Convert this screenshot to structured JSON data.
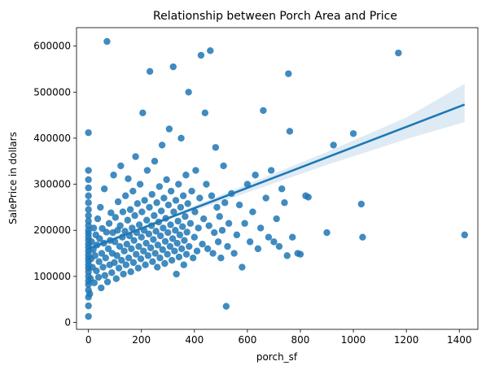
{
  "chart_data": {
    "type": "scatter",
    "title": "Relationship between Porch Area and Price",
    "xlabel": "porch_sf",
    "ylabel": "SalePrice in dollars",
    "xlim": [
      -45,
      1470
    ],
    "ylim": [
      -15000,
      640000
    ],
    "xticks": [
      0,
      200,
      400,
      600,
      800,
      1000,
      1200,
      1400
    ],
    "yticks": [
      0,
      100000,
      200000,
      300000,
      400000,
      500000,
      600000
    ],
    "grid": false,
    "colors": {
      "points": "#1f77b4",
      "regression_line": "#1f77b4",
      "confidence_band": "#1f77b4"
    },
    "points": [
      [
        0,
        13000
      ],
      [
        0,
        36000
      ],
      [
        0,
        55000
      ],
      [
        0,
        70000
      ],
      [
        0,
        82000
      ],
      [
        0,
        90000
      ],
      [
        0,
        100000
      ],
      [
        0,
        110000
      ],
      [
        0,
        118000
      ],
      [
        0,
        125000
      ],
      [
        0,
        133000
      ],
      [
        0,
        140000
      ],
      [
        0,
        147000
      ],
      [
        0,
        155000
      ],
      [
        0,
        163000
      ],
      [
        0,
        170000
      ],
      [
        0,
        178000
      ],
      [
        0,
        185000
      ],
      [
        0,
        193000
      ],
      [
        0,
        200000
      ],
      [
        0,
        210000
      ],
      [
        0,
        220000
      ],
      [
        0,
        232000
      ],
      [
        0,
        245000
      ],
      [
        0,
        260000
      ],
      [
        0,
        275000
      ],
      [
        0,
        292000
      ],
      [
        0,
        310000
      ],
      [
        0,
        330000
      ],
      [
        0,
        412000
      ],
      [
        5,
        62000
      ],
      [
        8,
        95000
      ],
      [
        10,
        138000
      ],
      [
        12,
        175000
      ],
      [
        15,
        120000
      ],
      [
        18,
        158000
      ],
      [
        20,
        205000
      ],
      [
        22,
        86000
      ],
      [
        25,
        145000
      ],
      [
        28,
        190000
      ],
      [
        30,
        112000
      ],
      [
        32,
        168000
      ],
      [
        35,
        225000
      ],
      [
        38,
        98000
      ],
      [
        40,
        132000
      ],
      [
        42,
        182000
      ],
      [
        45,
        250000
      ],
      [
        48,
        75000
      ],
      [
        50,
        150000
      ],
      [
        52,
        204000
      ],
      [
        55,
        120000
      ],
      [
        58,
        172000
      ],
      [
        60,
        290000
      ],
      [
        62,
        102000
      ],
      [
        65,
        140000
      ],
      [
        68,
        196000
      ],
      [
        70,
        610000
      ],
      [
        72,
        88000
      ],
      [
        75,
        160000
      ],
      [
        78,
        215000
      ],
      [
        80,
        125000
      ],
      [
        82,
        178000
      ],
      [
        85,
        238000
      ],
      [
        88,
        108000
      ],
      [
        90,
        150000
      ],
      [
        92,
        195000
      ],
      [
        95,
        320000
      ],
      [
        98,
        130000
      ],
      [
        100,
        175000
      ],
      [
        102,
        228000
      ],
      [
        105,
        95000
      ],
      [
        108,
        145000
      ],
      [
        110,
        200000
      ],
      [
        112,
        262000
      ],
      [
        115,
        118000
      ],
      [
        118,
        165000
      ],
      [
        120,
        210000
      ],
      [
        122,
        340000
      ],
      [
        125,
        135000
      ],
      [
        128,
        185000
      ],
      [
        130,
        240000
      ],
      [
        132,
        105000
      ],
      [
        135,
        155000
      ],
      [
        138,
        198000
      ],
      [
        140,
        275000
      ],
      [
        142,
        125000
      ],
      [
        145,
        170000
      ],
      [
        148,
        222000
      ],
      [
        150,
        312000
      ],
      [
        152,
        140000
      ],
      [
        155,
        188000
      ],
      [
        158,
        245000
      ],
      [
        160,
        110000
      ],
      [
        162,
        160000
      ],
      [
        165,
        205000
      ],
      [
        168,
        285000
      ],
      [
        170,
        130000
      ],
      [
        172,
        178000
      ],
      [
        175,
        232000
      ],
      [
        178,
        360000
      ],
      [
        180,
        148000
      ],
      [
        182,
        195000
      ],
      [
        185,
        258000
      ],
      [
        188,
        118000
      ],
      [
        190,
        165000
      ],
      [
        192,
        212000
      ],
      [
        195,
        300000
      ],
      [
        198,
        138000
      ],
      [
        200,
        185000
      ],
      [
        202,
        240000
      ],
      [
        205,
        455000
      ],
      [
        208,
        155000
      ],
      [
        210,
        200000
      ],
      [
        212,
        265000
      ],
      [
        215,
        125000
      ],
      [
        218,
        172000
      ],
      [
        220,
        222000
      ],
      [
        222,
        330000
      ],
      [
        225,
        145000
      ],
      [
        228,
        192000
      ],
      [
        230,
        250000
      ],
      [
        232,
        545000
      ],
      [
        235,
        162000
      ],
      [
        238,
        210000
      ],
      [
        240,
        278000
      ],
      [
        242,
        132000
      ],
      [
        245,
        180000
      ],
      [
        248,
        232000
      ],
      [
        250,
        350000
      ],
      [
        252,
        150000
      ],
      [
        255,
        198000
      ],
      [
        258,
        260000
      ],
      [
        260,
        120000
      ],
      [
        262,
        168000
      ],
      [
        265,
        218000
      ],
      [
        268,
        295000
      ],
      [
        270,
        140000
      ],
      [
        272,
        188000
      ],
      [
        275,
        242000
      ],
      [
        278,
        385000
      ],
      [
        280,
        158000
      ],
      [
        282,
        205000
      ],
      [
        285,
        270000
      ],
      [
        288,
        128000
      ],
      [
        290,
        176000
      ],
      [
        292,
        226000
      ],
      [
        295,
        310000
      ],
      [
        298,
        148000
      ],
      [
        300,
        195000
      ],
      [
        302,
        255000
      ],
      [
        305,
        420000
      ],
      [
        308,
        165000
      ],
      [
        310,
        212000
      ],
      [
        312,
        285000
      ],
      [
        315,
        135000
      ],
      [
        318,
        182000
      ],
      [
        320,
        555000
      ],
      [
        322,
        240000
      ],
      [
        325,
        155000
      ],
      [
        328,
        200000
      ],
      [
        330,
        265000
      ],
      [
        332,
        105000
      ],
      [
        335,
        172000
      ],
      [
        338,
        220000
      ],
      [
        340,
        300000
      ],
      [
        342,
        142000
      ],
      [
        345,
        190000
      ],
      [
        348,
        250000
      ],
      [
        350,
        400000
      ],
      [
        352,
        160000
      ],
      [
        355,
        208000
      ],
      [
        358,
        275000
      ],
      [
        360,
        125000
      ],
      [
        362,
        178000
      ],
      [
        365,
        230000
      ],
      [
        368,
        320000
      ],
      [
        370,
        148000
      ],
      [
        372,
        196000
      ],
      [
        375,
        258000
      ],
      [
        378,
        500000
      ],
      [
        380,
        165000
      ],
      [
        385,
        215000
      ],
      [
        390,
        285000
      ],
      [
        395,
        140000
      ],
      [
        400,
        185000
      ],
      [
        402,
        240000
      ],
      [
        405,
        330000
      ],
      [
        410,
        155000
      ],
      [
        415,
        205000
      ],
      [
        420,
        270000
      ],
      [
        425,
        580000
      ],
      [
        430,
        170000
      ],
      [
        435,
        225000
      ],
      [
        440,
        455000
      ],
      [
        445,
        300000
      ],
      [
        450,
        160000
      ],
      [
        455,
        210000
      ],
      [
        460,
        590000
      ],
      [
        465,
        275000
      ],
      [
        470,
        150000
      ],
      [
        475,
        195000
      ],
      [
        480,
        380000
      ],
      [
        485,
        250000
      ],
      [
        490,
        175000
      ],
      [
        495,
        230000
      ],
      [
        500,
        140000
      ],
      [
        505,
        200000
      ],
      [
        510,
        340000
      ],
      [
        515,
        260000
      ],
      [
        520,
        35000
      ],
      [
        525,
        165000
      ],
      [
        530,
        215000
      ],
      [
        540,
        280000
      ],
      [
        550,
        150000
      ],
      [
        560,
        190000
      ],
      [
        570,
        255000
      ],
      [
        580,
        120000
      ],
      [
        590,
        215000
      ],
      [
        600,
        300000
      ],
      [
        610,
        175000
      ],
      [
        620,
        240000
      ],
      [
        630,
        320000
      ],
      [
        640,
        160000
      ],
      [
        650,
        205000
      ],
      [
        660,
        460000
      ],
      [
        670,
        270000
      ],
      [
        680,
        185000
      ],
      [
        690,
        330000
      ],
      [
        700,
        175000
      ],
      [
        710,
        225000
      ],
      [
        720,
        165000
      ],
      [
        730,
        290000
      ],
      [
        740,
        260000
      ],
      [
        750,
        145000
      ],
      [
        755,
        540000
      ],
      [
        760,
        415000
      ],
      [
        770,
        185000
      ],
      [
        790,
        150000
      ],
      [
        800,
        148000
      ],
      [
        820,
        275000
      ],
      [
        830,
        272000
      ],
      [
        900,
        195000
      ],
      [
        925,
        385000
      ],
      [
        1000,
        410000
      ],
      [
        1030,
        257000
      ],
      [
        1035,
        185000
      ],
      [
        1170,
        585000
      ],
      [
        1420,
        190000
      ]
    ],
    "regression_line": {
      "x": [
        0,
        1420
      ],
      "y": [
        160000,
        473000
      ]
    },
    "confidence_band": {
      "x": [
        0,
        300,
        600,
        900,
        1200,
        1420
      ],
      "lower": [
        153000,
        223000,
        282000,
        342000,
        398000,
        435000
      ],
      "upper": [
        167000,
        230000,
        300000,
        370000,
        445000,
        518000
      ]
    }
  }
}
